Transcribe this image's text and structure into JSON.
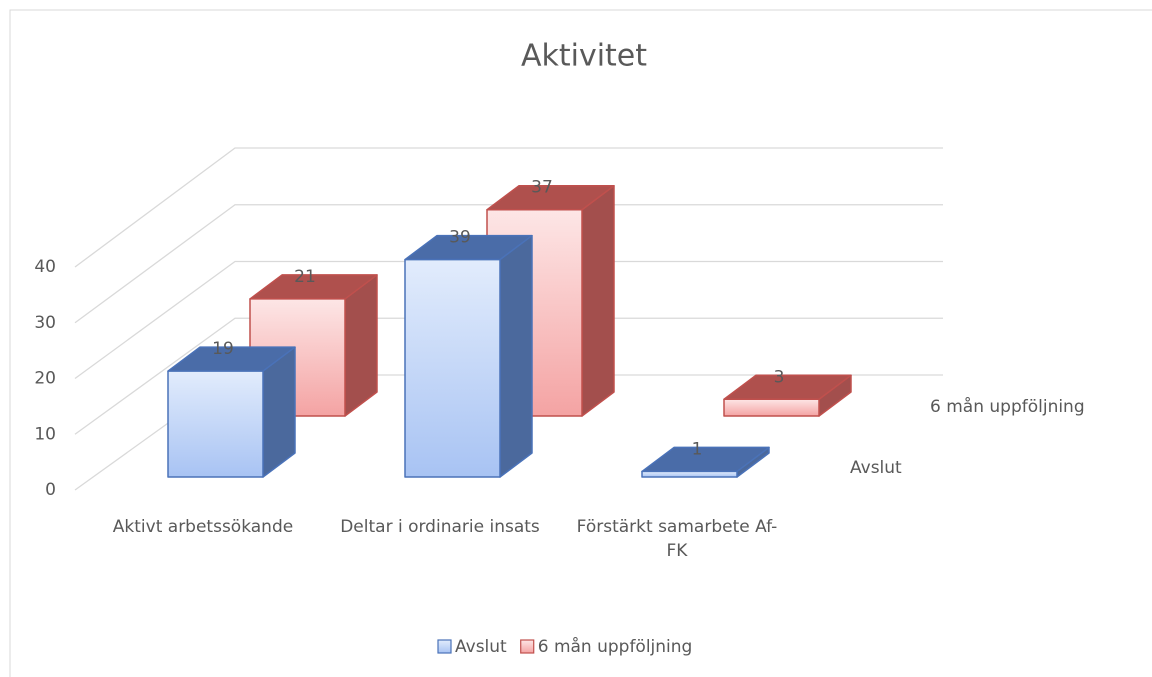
{
  "chart_data": {
    "type": "bar3d",
    "title": "Aktivitet",
    "categories": [
      "Aktivt arbetssökande",
      "Deltar i ordinarie insats",
      "Förstärkt samarbete Af-FK"
    ],
    "series": [
      {
        "name": "Avslut",
        "color": "#4a72b8",
        "values": [
          19,
          39,
          1
        ]
      },
      {
        "name": "6 mån uppföljning",
        "color": "#c0504d",
        "values": [
          21,
          37,
          3
        ]
      }
    ],
    "ylim": [
      0,
      40
    ],
    "yticks": [
      0,
      10,
      20,
      30,
      40
    ],
    "grid": true,
    "legend": "bottom"
  }
}
